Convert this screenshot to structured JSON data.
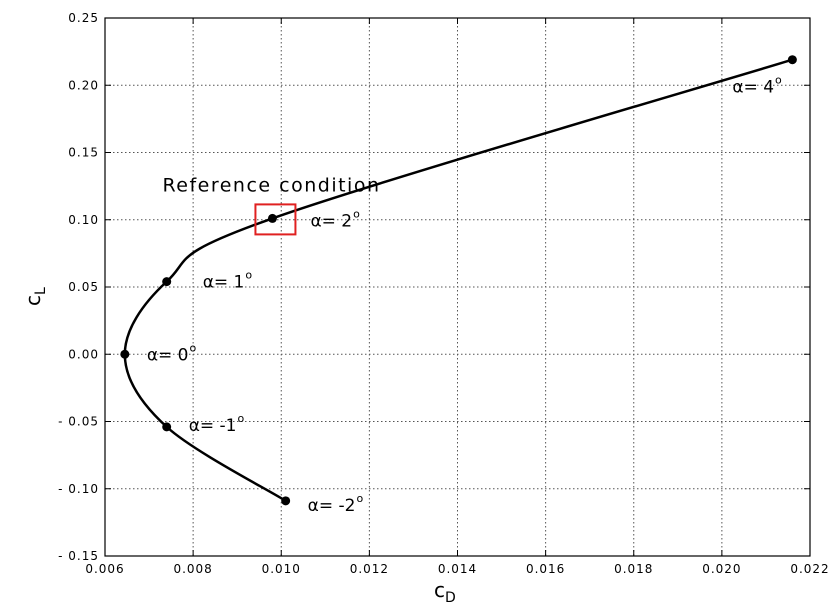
{
  "chart_data": {
    "type": "line",
    "xlabel_main": "c",
    "xlabel_sub": "D",
    "ylabel_main": "c",
    "ylabel_sub": "L",
    "xlim": [
      0.006,
      0.022
    ],
    "ylim": [
      -0.15,
      0.25
    ],
    "x_ticks": [
      0.006,
      0.008,
      0.01,
      0.012,
      0.014,
      0.016,
      0.018,
      0.02,
      0.022
    ],
    "x_tick_labels": [
      "0.006",
      "0.008",
      "0.010",
      "0.012",
      "0.014",
      "0.016",
      "0.018",
      "0.020",
      "0.022"
    ],
    "y_ticks": [
      -0.15,
      -0.1,
      -0.05,
      0.0,
      0.05,
      0.1,
      0.15,
      0.2,
      0.25
    ],
    "y_tick_labels": [
      "- 0.15",
      "- 0.10",
      "- 0.05",
      "0.00",
      "0.05",
      "0.10",
      "0.15",
      "0.20",
      "0.25"
    ],
    "grid": true,
    "series": [
      {
        "x": [
          0.0101,
          0.0074,
          0.00645,
          0.0074,
          0.0098,
          0.0216
        ],
        "y": [
          -0.109,
          -0.054,
          0.0,
          0.054,
          0.101,
          0.219
        ]
      }
    ],
    "point_labels": [
      {
        "text": "α= -2",
        "deg": "o",
        "x": 0.0101,
        "y": -0.109
      },
      {
        "text": "α= -1",
        "deg": "o",
        "x": 0.0074,
        "y": -0.054
      },
      {
        "text": "α= 0",
        "deg": "o",
        "x": 0.00645,
        "y": 0.0
      },
      {
        "text": "α= 1",
        "deg": "o",
        "x": 0.0074,
        "y": 0.054
      },
      {
        "text": "α= 2",
        "deg": "o",
        "x": 0.0098,
        "y": 0.101
      },
      {
        "text": "α= 4",
        "deg": "o",
        "x": 0.0216,
        "y": 0.219
      }
    ],
    "reference_label": "Reference condition",
    "colors": {
      "curve": "#000000",
      "reference_box": "#e02020"
    }
  }
}
